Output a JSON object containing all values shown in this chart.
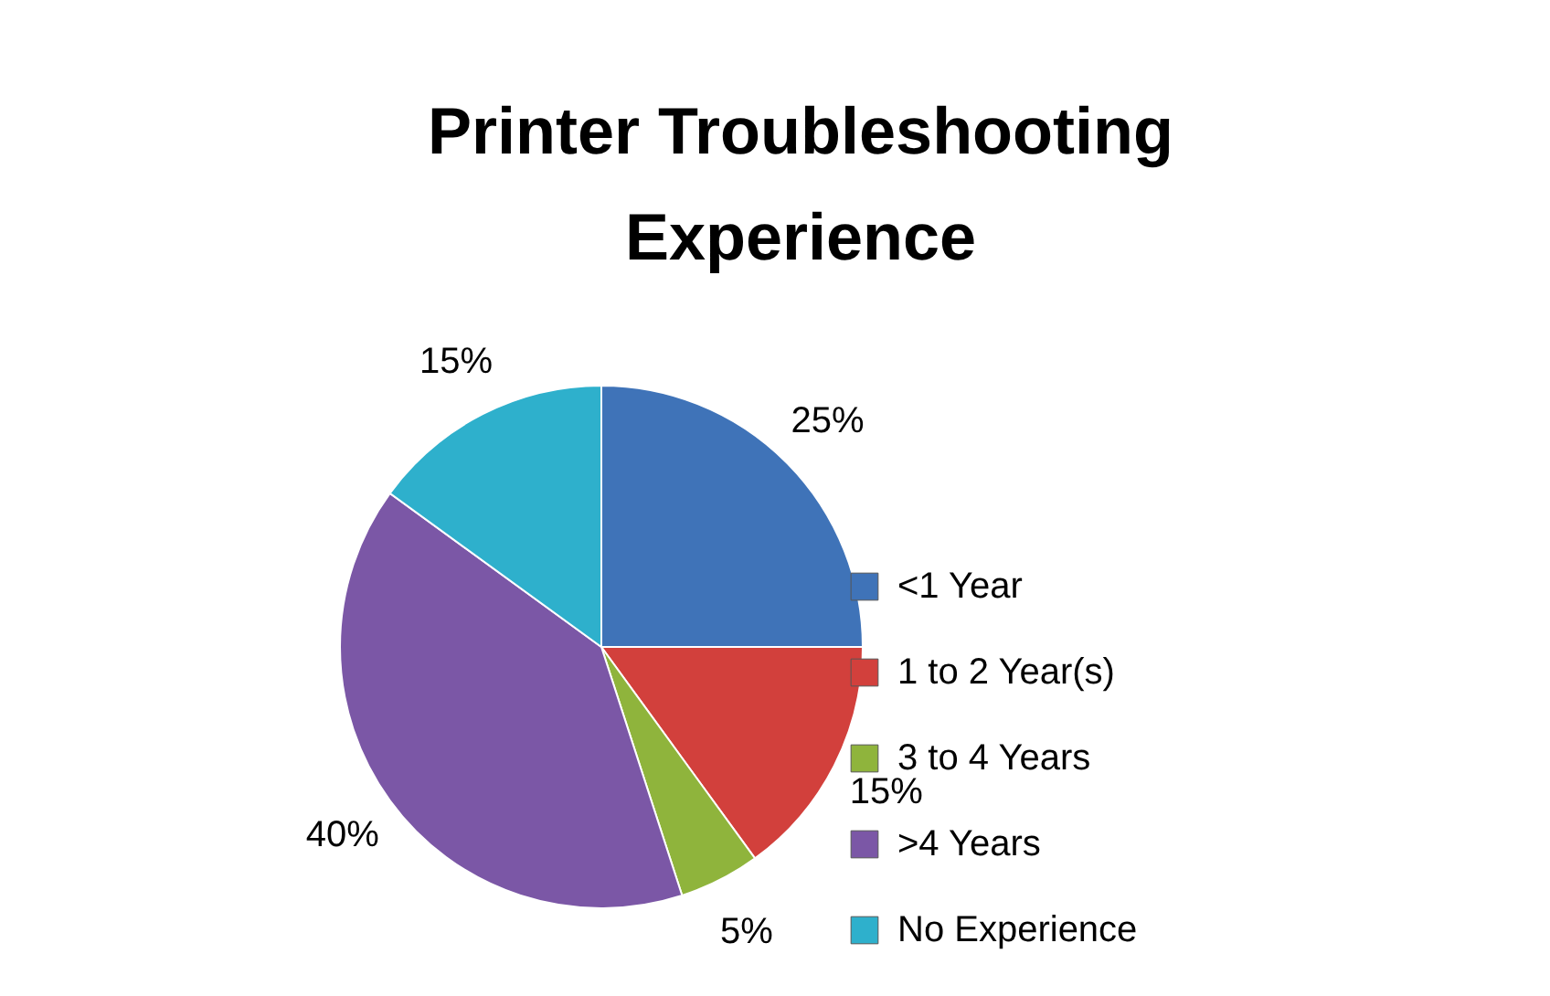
{
  "chart_data": {
    "type": "pie",
    "title": "Printer Troubleshooting Experience",
    "categories": [
      "<1 Year",
      "1 to 2 Year(s)",
      "3 to 4 Years",
      ">4 Years",
      "No Experience"
    ],
    "values": [
      25,
      15,
      5,
      40,
      15
    ],
    "colors": [
      "#3f73b8",
      "#d2403c",
      "#8fb43c",
      "#7b57a6",
      "#2eb0cc"
    ],
    "value_labels": [
      "25%",
      "15%",
      "5%",
      "40%",
      "15%"
    ],
    "legend": "right"
  }
}
